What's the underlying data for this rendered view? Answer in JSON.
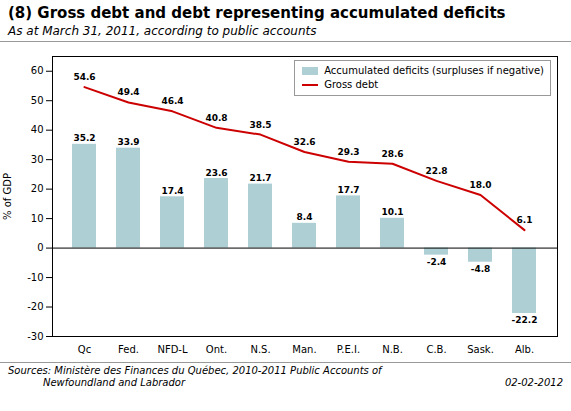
{
  "chart_data": {
    "type": "bar",
    "title": "(8) Gross debt and debt representing accumulated deficits",
    "subtitle": "As at March 31, 2011, according to public accounts",
    "ylabel": "% of GDP",
    "categories": [
      "Qc",
      "Fed.",
      "NFD-L",
      "Ont.",
      "N.S.",
      "Man.",
      "P.E.I.",
      "N.B.",
      "C.B.",
      "Sask.",
      "Alb."
    ],
    "series": [
      {
        "name": "Accumulated deficits (surpluses if negative)",
        "type": "bar",
        "color": "#aecfd4",
        "values": [
          35.2,
          33.9,
          17.4,
          23.6,
          21.7,
          8.4,
          17.7,
          10.1,
          -2.4,
          -4.8,
          -22.2
        ]
      },
      {
        "name": "Gross debt",
        "type": "line",
        "color": "#cc0000",
        "values": [
          54.6,
          49.4,
          46.4,
          40.8,
          38.5,
          32.6,
          29.3,
          28.6,
          22.8,
          18.0,
          6.1
        ],
        "value_labels": [
          "54.6",
          "49.4",
          "46.4",
          "40.8",
          "38.5",
          "32.6",
          "29.3",
          "28.6",
          "22.8",
          "18.0",
          "6.1"
        ]
      }
    ],
    "ylim": [
      -30,
      65
    ],
    "yticks": [
      -30,
      -20,
      -10,
      0,
      10,
      20,
      30,
      40,
      50,
      60
    ],
    "grid": false,
    "legend": "upper right",
    "data_labels": true,
    "annotations": [
      "Sources: Ministère des Finances du Québec, 2010-2011 Public Accounts of\n           Newfoundland and Labrador",
      "02-02-2012"
    ]
  }
}
